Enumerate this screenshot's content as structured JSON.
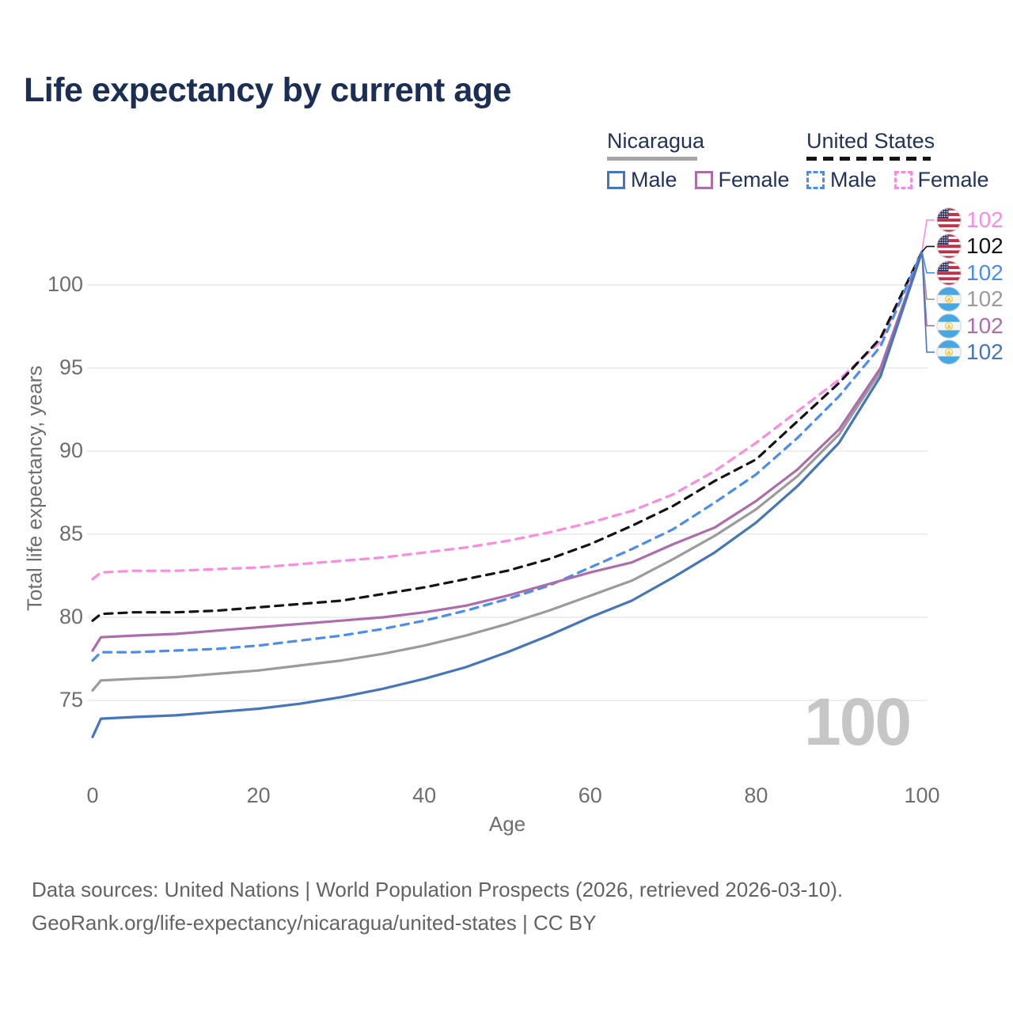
{
  "title": "Life expectancy by current age",
  "legend": {
    "groups": [
      {
        "name": "Nicaragua",
        "style": "solid",
        "items": [
          {
            "label": "Male"
          },
          {
            "label": "Female"
          }
        ]
      },
      {
        "name": "United States",
        "style": "dashed",
        "items": [
          {
            "label": "Male"
          },
          {
            "label": "Female"
          }
        ]
      }
    ]
  },
  "watermark": "100",
  "footer": {
    "line1": "Data sources: United Nations | World Population Prospects (2026, retrieved 2026-03-10).",
    "line2": "GeoRank.org/life-expectancy/nicaragua/united-states | CC BY"
  },
  "chart_data": {
    "type": "line",
    "title": "Life expectancy by current age",
    "xlabel": "Age",
    "ylabel": "Total life expectancy, years",
    "x_ticks": [
      0,
      20,
      40,
      60,
      80,
      100
    ],
    "y_ticks": [
      75,
      80,
      85,
      90,
      95,
      100
    ],
    "xlim": [
      0,
      100
    ],
    "ylim": [
      72.5,
      103.5
    ],
    "grid": "horizontal",
    "legend_position": "top-right",
    "x": [
      0,
      1,
      5,
      10,
      15,
      20,
      25,
      30,
      35,
      40,
      45,
      50,
      55,
      60,
      65,
      70,
      75,
      80,
      85,
      90,
      95,
      100
    ],
    "series": [
      {
        "name": "United States Female",
        "country": "United States",
        "sex": "Female",
        "color": "#fc8be0",
        "dash": true,
        "flag": "us",
        "end_label": "102",
        "values": [
          82.3,
          82.7,
          82.8,
          82.8,
          82.9,
          83.0,
          83.2,
          83.4,
          83.6,
          83.9,
          84.2,
          84.6,
          85.1,
          85.7,
          86.4,
          87.4,
          88.8,
          90.5,
          92.4,
          94.3,
          96.6,
          102
        ]
      },
      {
        "name": "United States Total",
        "country": "United States",
        "sex": "Total",
        "color": "#141414",
        "dash": true,
        "flag": "us",
        "end_label": "102",
        "values": [
          79.8,
          80.2,
          80.3,
          80.3,
          80.4,
          80.6,
          80.8,
          81.0,
          81.4,
          81.8,
          82.3,
          82.8,
          83.5,
          84.4,
          85.5,
          86.7,
          88.2,
          89.5,
          91.8,
          94.1,
          96.8,
          102
        ]
      },
      {
        "name": "United States Male",
        "country": "United States",
        "sex": "Male",
        "color": "#4a8df0",
        "dash": true,
        "flag": "us",
        "end_label": "102",
        "values": [
          77.4,
          77.9,
          77.9,
          78.0,
          78.1,
          78.3,
          78.6,
          78.9,
          79.3,
          79.8,
          80.4,
          81.1,
          81.9,
          83.0,
          84.1,
          85.3,
          86.9,
          88.6,
          90.8,
          93.3,
          96.3,
          102
        ]
      },
      {
        "name": "Nicaragua Total",
        "country": "Nicaragua",
        "sex": "Total",
        "color": "#9b9b9b",
        "dash": false,
        "flag": "ni",
        "end_label": "102",
        "values": [
          75.6,
          76.2,
          76.3,
          76.4,
          76.6,
          76.8,
          77.1,
          77.4,
          77.8,
          78.3,
          78.9,
          79.6,
          80.4,
          81.3,
          82.2,
          83.5,
          84.9,
          86.5,
          88.5,
          91.0,
          94.8,
          102
        ]
      },
      {
        "name": "Nicaragua Female",
        "country": "Nicaragua",
        "sex": "Female",
        "color": "#ad6cac",
        "dash": false,
        "flag": "ni",
        "end_label": "102",
        "values": [
          78.0,
          78.8,
          78.9,
          79.0,
          79.2,
          79.4,
          79.6,
          79.8,
          80.0,
          80.3,
          80.7,
          81.3,
          82.0,
          82.7,
          83.3,
          84.4,
          85.4,
          87.0,
          88.9,
          91.3,
          95.0,
          102
        ]
      },
      {
        "name": "Nicaragua Male",
        "country": "Nicaragua",
        "sex": "Male",
        "color": "#4576bb",
        "dash": false,
        "flag": "ni",
        "end_label": "102",
        "values": [
          72.8,
          73.9,
          74.0,
          74.1,
          74.3,
          74.5,
          74.8,
          75.2,
          75.7,
          76.3,
          77.0,
          77.9,
          78.9,
          80.0,
          81.0,
          82.4,
          83.9,
          85.7,
          87.9,
          90.5,
          94.5,
          102
        ]
      }
    ]
  }
}
